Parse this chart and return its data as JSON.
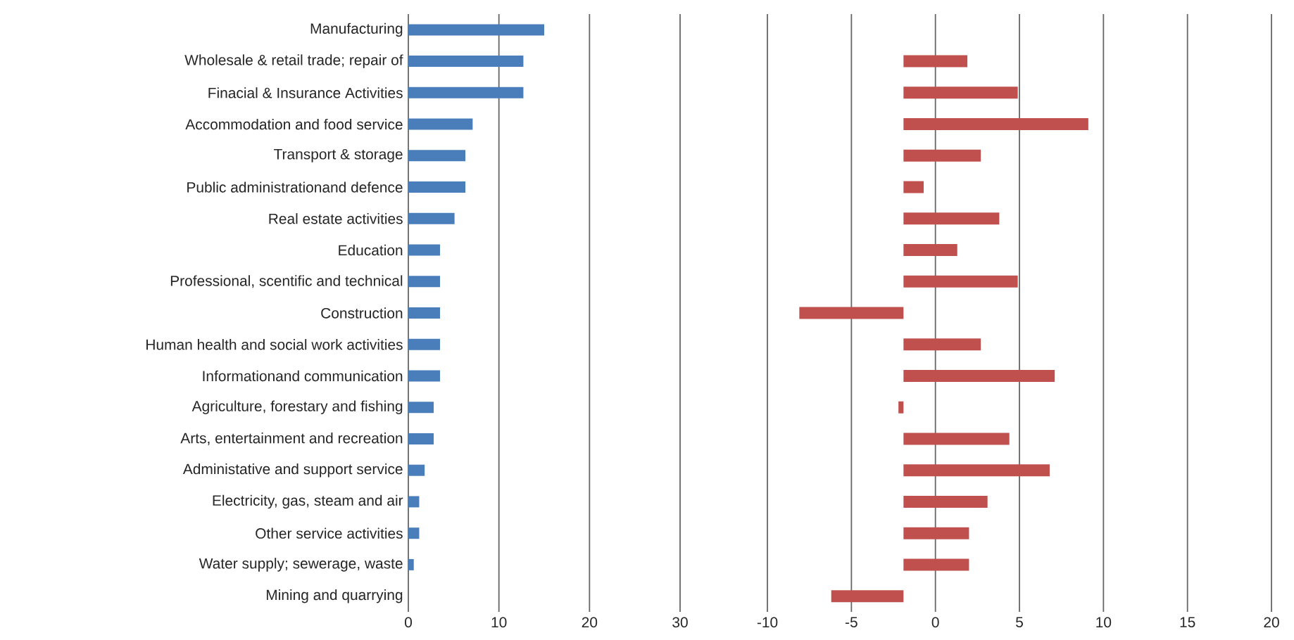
{
  "chart_data": [
    {
      "type": "bar",
      "orientation": "horizontal",
      "categories": [
        "Manufacturing",
        "Wholesale & retail trade; repair of",
        "Finacial & Insurance Activities",
        "Accommodation and food service",
        "Transport & storage",
        "Public administrationand defence",
        "Real estate activities",
        "Education",
        "Professional, scentific and technical",
        "Construction",
        "Human health and social work activities",
        "Informationand communication",
        "Agriculture, forestary and fishing",
        "Arts, entertainment and recreation",
        "Administative and support service",
        "Electricity, gas, steam and air",
        "Other service activities",
        "Water supply; sewerage, waste",
        "Mining and quarrying"
      ],
      "values": [
        15.0,
        12.7,
        12.7,
        7.1,
        6.3,
        6.3,
        5.1,
        3.5,
        3.5,
        3.5,
        3.5,
        3.5,
        2.8,
        2.8,
        1.8,
        1.2,
        1.2,
        0.6,
        0
      ],
      "color": "#4a7ebb",
      "xlim": [
        0,
        30
      ],
      "xticks": [
        0,
        10,
        20,
        30
      ],
      "grid": "x"
    },
    {
      "type": "bar",
      "orientation": "horizontal",
      "categories": [
        null,
        null,
        null,
        null,
        null,
        null,
        null,
        null,
        null,
        null,
        null,
        null,
        null,
        null,
        null,
        null,
        null,
        null,
        null
      ],
      "values": [
        null,
        3.8,
        6.8,
        11.0,
        4.6,
        1.2,
        5.7,
        3.2,
        6.8,
        -6.2,
        4.6,
        9.0,
        -0.3,
        6.3,
        8.7,
        5.0,
        3.9,
        3.9,
        -4.3
      ],
      "base": [
        null,
        -1.9,
        -1.9,
        -1.9,
        -1.9,
        -1.9,
        -1.9,
        -1.9,
        -1.9,
        -1.9,
        -1.9,
        -1.9,
        -1.9,
        -1.9,
        -1.9,
        -1.9,
        -1.9,
        -1.9,
        -1.9
      ],
      "color": "#c0504d",
      "xlim": [
        -10,
        20
      ],
      "xticks": [
        -10,
        -5,
        0,
        5,
        10,
        15,
        20
      ],
      "grid": "x"
    }
  ]
}
